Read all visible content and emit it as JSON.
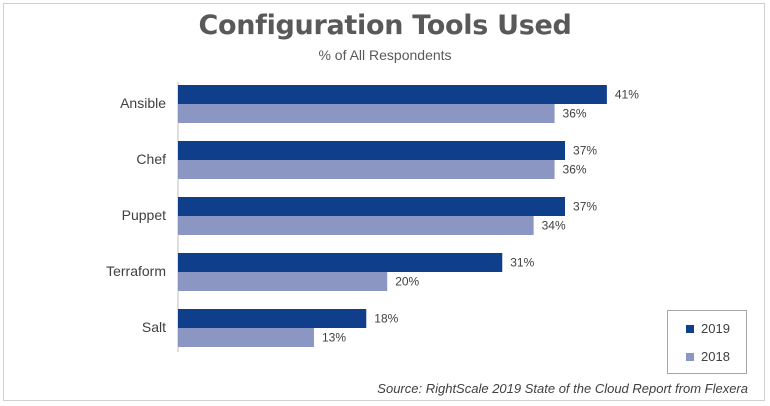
{
  "chart_data": {
    "type": "bar",
    "orientation": "horizontal",
    "title": "Configuration Tools Used",
    "subtitle": "% of All Respondents",
    "categories": [
      "Ansible",
      "Chef",
      "Puppet",
      "Terraform",
      "Salt"
    ],
    "series": [
      {
        "name": "2019",
        "values": [
          41,
          37,
          37,
          31,
          18
        ],
        "labels": [
          "41%",
          "37%",
          "37%",
          "31%",
          "18%"
        ],
        "color": "#0f3e8a"
      },
      {
        "name": "2018",
        "values": [
          36,
          36,
          34,
          20,
          13
        ],
        "labels": [
          "36%",
          "36%",
          "34%",
          "20%",
          "13%"
        ],
        "color": "#8b96c2"
      }
    ],
    "xlim": [
      0,
      50
    ],
    "grid": false,
    "legend_position": "bottom-right",
    "source": "Source: RightScale 2019 State of the Cloud Report from Flexera"
  }
}
